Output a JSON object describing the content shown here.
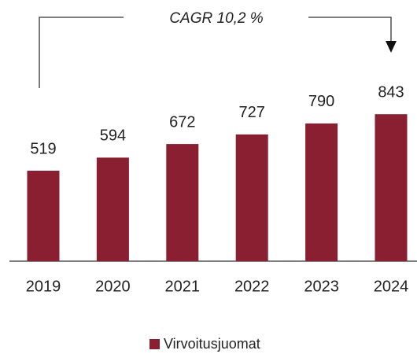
{
  "chart_data": {
    "type": "bar",
    "annotation": "CAGR 10,2 %",
    "categories": [
      "2019",
      "2020",
      "2021",
      "2022",
      "2023",
      "2024"
    ],
    "series": [
      {
        "name": "Virvoitusjuomat",
        "color": "#8b1f32",
        "values": [
          519,
          594,
          672,
          727,
          790,
          843
        ]
      }
    ]
  }
}
